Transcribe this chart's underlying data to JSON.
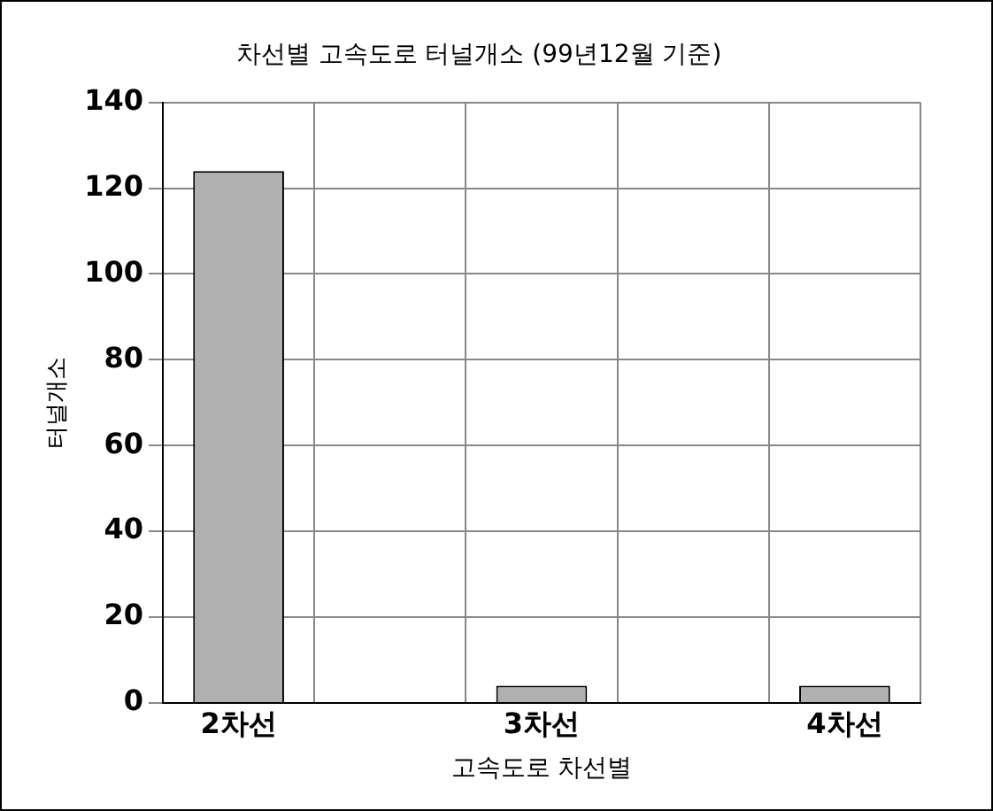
{
  "chart_data": {
    "type": "bar",
    "title": "차선별 고속도로 터널개소 (99년12월 기준)",
    "xlabel": "고속도로 차선별",
    "ylabel": "터널개소",
    "categories": [
      "2차선",
      null,
      "3차선",
      null,
      "4차선"
    ],
    "values": [
      124,
      null,
      4,
      null,
      4
    ],
    "color": "#b0b0b0",
    "ylim": [
      0,
      140
    ],
    "yticks": [
      0,
      20,
      40,
      60,
      80,
      100,
      120,
      140
    ],
    "grid": true,
    "legend": false
  }
}
